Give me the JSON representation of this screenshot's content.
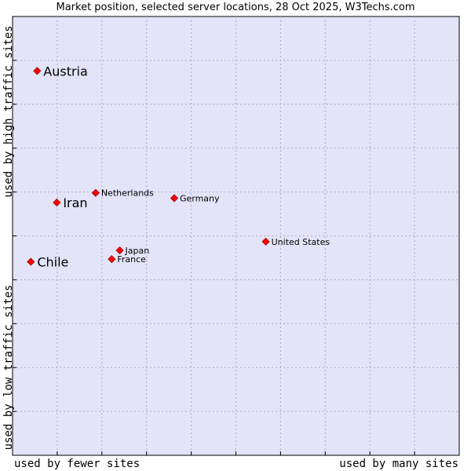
{
  "chart_data": {
    "type": "scatter",
    "title": "Market position, selected server locations, 28 Oct 2025, W3Techs.com",
    "xlabel_low": "used by fewer sites",
    "xlabel_high": "used by many sites",
    "ylabel_high": "used by high traffic sites",
    "ylabel_low": "used by low traffic sites",
    "xlim": [
      0,
      100
    ],
    "ylim": [
      0,
      100
    ],
    "grid": true,
    "colors": {
      "background": "#e4e4f8",
      "grid": "#aaaacc",
      "point": "#ff0000"
    },
    "points": [
      {
        "label": "Austria",
        "x": 5.5,
        "y": 87.6,
        "size": "large"
      },
      {
        "label": "Iran",
        "x": 9.9,
        "y": 57.6,
        "size": "large"
      },
      {
        "label": "Chile",
        "x": 4.1,
        "y": 44.1,
        "size": "large"
      },
      {
        "label": "Netherlands",
        "x": 18.6,
        "y": 59.8,
        "size": "small"
      },
      {
        "label": "Germany",
        "x": 36.2,
        "y": 58.6,
        "size": "small"
      },
      {
        "label": "Japan",
        "x": 24.0,
        "y": 46.7,
        "size": "small"
      },
      {
        "label": "France",
        "x": 22.2,
        "y": 44.7,
        "size": "small"
      },
      {
        "label": "United States",
        "x": 56.7,
        "y": 48.7,
        "size": "small"
      }
    ]
  }
}
